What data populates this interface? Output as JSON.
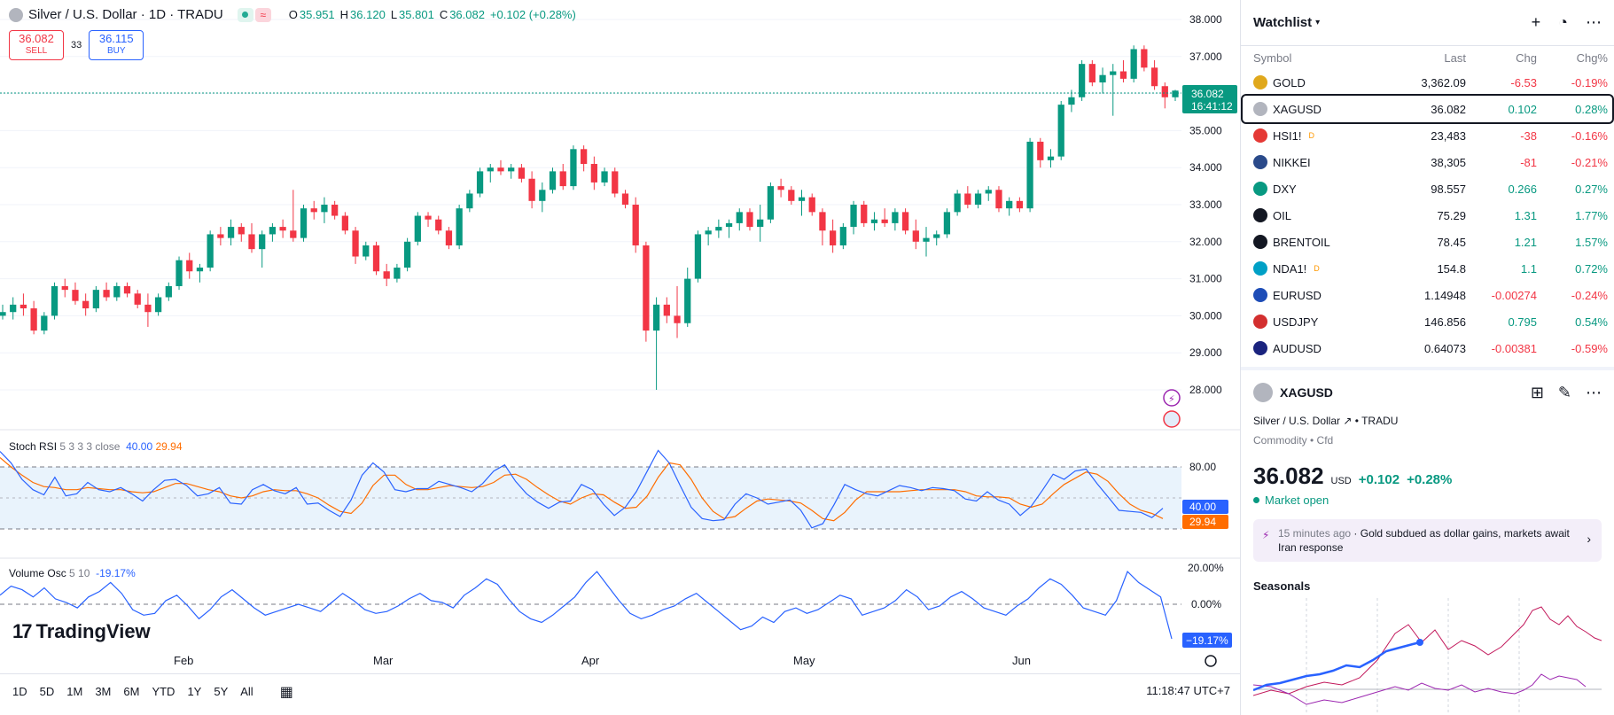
{
  "header": {
    "symbol_title": "Silver / U.S. Dollar · 1D · TRADU",
    "ohlc": [
      {
        "k": "O",
        "v": "35.951"
      },
      {
        "k": "H",
        "v": "36.120"
      },
      {
        "k": "L",
        "v": "35.801"
      },
      {
        "k": "C",
        "v": "36.082"
      }
    ],
    "change": "+0.102 (+0.28%)"
  },
  "trade": {
    "sell_price": "36.082",
    "sell_label": "SELL",
    "spread": "33",
    "buy_price": "36.115",
    "buy_label": "BUY"
  },
  "price_axis": {
    "ticks": [
      "38.000",
      "37.000",
      "36.000",
      "35.000",
      "34.000",
      "33.000",
      "32.000",
      "31.000",
      "30.000",
      "29.000",
      "28.000"
    ],
    "last_price": "36.082",
    "countdown": "16:41:12"
  },
  "stoch_rsi": {
    "name": "Stoch RSI",
    "params": "5 3 3 3 close",
    "k_value": "40.00",
    "d_value": "29.94",
    "level_high": "80.00",
    "level_low": "20.00"
  },
  "volume_osc": {
    "name": "Volume Osc",
    "params": "5 10",
    "value": "-19.17%",
    "value_tag": "−19.17%",
    "ticks": [
      "20.00%",
      "0.00%"
    ]
  },
  "time_axis": [
    "Feb",
    "Mar",
    "Apr",
    "May",
    "Jun"
  ],
  "logo": {
    "text": "TradingView"
  },
  "bottom_bar": {
    "timeframes": [
      "1D",
      "5D",
      "1M",
      "3M",
      "6M",
      "YTD",
      "1Y",
      "5Y",
      "All"
    ],
    "clock": "11:18:47 UTC+7"
  },
  "watchlist": {
    "title": "Watchlist",
    "columns": [
      "Symbol",
      "Last",
      "Chg",
      "Chg%"
    ],
    "rows": [
      {
        "symbol": "GOLD",
        "last": "3,362.09",
        "chg": "-6.53",
        "chgp": "-0.19%",
        "dir": "neg",
        "icon_color": "#e0a81c",
        "badge": ""
      },
      {
        "symbol": "XAGUSD",
        "last": "36.082",
        "chg": "0.102",
        "chgp": "0.28%",
        "dir": "pos",
        "icon_color": "#b2b5be",
        "badge": "",
        "selected": true
      },
      {
        "symbol": "HSI1!",
        "last": "23,483",
        "chg": "-38",
        "chgp": "-0.16%",
        "dir": "neg",
        "icon_color": "#e53935",
        "badge": "D"
      },
      {
        "symbol": "NIKKEI",
        "last": "38,305",
        "chg": "-81",
        "chgp": "-0.21%",
        "dir": "neg",
        "icon_color": "#2a4a8a",
        "badge": ""
      },
      {
        "symbol": "DXY",
        "last": "98.557",
        "chg": "0.266",
        "chgp": "0.27%",
        "dir": "pos",
        "icon_color": "#089981",
        "badge": ""
      },
      {
        "symbol": "OIL",
        "last": "75.29",
        "chg": "1.31",
        "chgp": "1.77%",
        "dir": "pos",
        "icon_color": "#131722",
        "badge": ""
      },
      {
        "symbol": "BRENTOIL",
        "last": "78.45",
        "chg": "1.21",
        "chgp": "1.57%",
        "dir": "pos",
        "icon_color": "#131722",
        "badge": ""
      },
      {
        "symbol": "NDA1!",
        "last": "154.8",
        "chg": "1.1",
        "chgp": "0.72%",
        "dir": "pos",
        "icon_color": "#00a0c6",
        "badge": "D"
      },
      {
        "symbol": "EURUSD",
        "last": "1.14948",
        "chg": "-0.00274",
        "chgp": "-0.24%",
        "dir": "neg",
        "icon_color": "#1e4db7",
        "badge": ""
      },
      {
        "symbol": "USDJPY",
        "last": "146.856",
        "chg": "0.795",
        "chgp": "0.54%",
        "dir": "pos",
        "icon_color": "#d32f2f",
        "badge": ""
      },
      {
        "symbol": "AUDUSD",
        "last": "0.64073",
        "chg": "-0.00381",
        "chgp": "-0.59%",
        "dir": "neg",
        "icon_color": "#1a237e",
        "badge": ""
      }
    ]
  },
  "detail": {
    "symbol": "XAGUSD",
    "name": "Silver / U.S. Dollar",
    "exchange": "TRADU",
    "type": "Commodity • Cfd",
    "price": "36.082",
    "currency": "USD",
    "change": "+0.102",
    "change_pct": "+0.28%",
    "market_status": "Market open",
    "news_time": "15 minutes ago",
    "news_headline": "Gold subdued as dollar gains, markets await Iran response",
    "seasonals_title": "Seasonals"
  },
  "colors": {
    "up": "#089981",
    "down": "#f23645",
    "blue": "#2962ff",
    "orange": "#ff6d00"
  },
  "chart_data": {
    "type": "candlestick",
    "ylim": [
      28,
      38
    ],
    "ohlc": [
      [
        30.0,
        30.3,
        29.9,
        30.1
      ],
      [
        30.1,
        30.5,
        29.9,
        30.3
      ],
      [
        30.3,
        30.6,
        30.0,
        30.2
      ],
      [
        30.2,
        30.4,
        29.5,
        29.6
      ],
      [
        29.6,
        30.1,
        29.5,
        30.0
      ],
      [
        30.0,
        30.9,
        29.9,
        30.8
      ],
      [
        30.8,
        31.0,
        30.5,
        30.7
      ],
      [
        30.7,
        30.9,
        30.3,
        30.4
      ],
      [
        30.4,
        30.6,
        30.0,
        30.2
      ],
      [
        30.2,
        30.8,
        30.1,
        30.7
      ],
      [
        30.7,
        30.9,
        30.4,
        30.5
      ],
      [
        30.5,
        30.9,
        30.4,
        30.8
      ],
      [
        30.8,
        30.9,
        30.5,
        30.6
      ],
      [
        30.6,
        30.7,
        30.2,
        30.3
      ],
      [
        30.3,
        30.6,
        29.7,
        30.1
      ],
      [
        30.1,
        30.6,
        30.0,
        30.5
      ],
      [
        30.5,
        30.9,
        30.4,
        30.8
      ],
      [
        30.8,
        31.6,
        30.7,
        31.5
      ],
      [
        31.5,
        31.7,
        31.0,
        31.2
      ],
      [
        31.2,
        31.4,
        30.9,
        31.3
      ],
      [
        31.3,
        32.3,
        31.2,
        32.2
      ],
      [
        32.2,
        32.4,
        31.9,
        32.1
      ],
      [
        32.1,
        32.6,
        31.9,
        32.4
      ],
      [
        32.4,
        32.5,
        32.0,
        32.2
      ],
      [
        32.2,
        32.5,
        31.7,
        31.8
      ],
      [
        31.8,
        32.3,
        31.3,
        32.2
      ],
      [
        32.2,
        32.5,
        32.0,
        32.4
      ],
      [
        32.4,
        32.6,
        32.1,
        32.3
      ],
      [
        32.3,
        33.4,
        32.0,
        32.1
      ],
      [
        32.1,
        33.0,
        32.0,
        32.9
      ],
      [
        32.9,
        33.1,
        32.6,
        32.8
      ],
      [
        32.8,
        33.2,
        32.5,
        33.0
      ],
      [
        33.0,
        33.1,
        32.6,
        32.7
      ],
      [
        32.7,
        32.8,
        32.2,
        32.3
      ],
      [
        32.3,
        32.4,
        31.4,
        31.6
      ],
      [
        31.6,
        32.0,
        31.5,
        31.9
      ],
      [
        31.9,
        32.0,
        31.1,
        31.2
      ],
      [
        31.2,
        31.4,
        30.8,
        31.0
      ],
      [
        31.0,
        31.4,
        30.9,
        31.3
      ],
      [
        31.3,
        32.1,
        31.2,
        32.0
      ],
      [
        32.0,
        32.8,
        31.9,
        32.7
      ],
      [
        32.7,
        32.8,
        32.4,
        32.6
      ],
      [
        32.6,
        32.7,
        32.2,
        32.3
      ],
      [
        32.3,
        32.4,
        31.8,
        31.9
      ],
      [
        31.9,
        33.0,
        31.8,
        32.9
      ],
      [
        32.9,
        33.4,
        32.8,
        33.3
      ],
      [
        33.3,
        34.0,
        33.2,
        33.9
      ],
      [
        33.9,
        34.1,
        33.6,
        34.0
      ],
      [
        34.0,
        34.2,
        33.8,
        33.9
      ],
      [
        33.9,
        34.1,
        33.7,
        34.0
      ],
      [
        34.0,
        34.1,
        33.6,
        33.7
      ],
      [
        33.7,
        33.9,
        32.9,
        33.1
      ],
      [
        33.1,
        33.6,
        32.8,
        33.4
      ],
      [
        33.4,
        34.0,
        33.3,
        33.9
      ],
      [
        33.9,
        34.1,
        33.4,
        33.5
      ],
      [
        33.5,
        34.6,
        33.4,
        34.5
      ],
      [
        34.5,
        34.6,
        33.9,
        34.1
      ],
      [
        34.1,
        34.3,
        33.4,
        33.6
      ],
      [
        33.6,
        34.0,
        33.5,
        33.9
      ],
      [
        33.9,
        34.0,
        33.2,
        33.3
      ],
      [
        33.3,
        33.4,
        32.9,
        33.0
      ],
      [
        33.0,
        33.2,
        31.7,
        31.9
      ],
      [
        31.9,
        32.0,
        29.3,
        29.6
      ],
      [
        29.6,
        30.5,
        28.0,
        30.3
      ],
      [
        30.3,
        30.5,
        29.8,
        30.0
      ],
      [
        30.0,
        30.8,
        29.4,
        29.8
      ],
      [
        29.8,
        31.3,
        29.7,
        31.0
      ],
      [
        31.0,
        32.3,
        30.9,
        32.2
      ],
      [
        32.2,
        32.4,
        31.9,
        32.3
      ],
      [
        32.3,
        32.6,
        32.1,
        32.4
      ],
      [
        32.4,
        32.6,
        32.1,
        32.5
      ],
      [
        32.5,
        32.9,
        32.3,
        32.8
      ],
      [
        32.8,
        32.9,
        32.3,
        32.4
      ],
      [
        32.4,
        33.0,
        32.0,
        32.6
      ],
      [
        32.6,
        33.6,
        32.5,
        33.5
      ],
      [
        33.5,
        33.7,
        33.2,
        33.4
      ],
      [
        33.4,
        33.5,
        33.0,
        33.1
      ],
      [
        33.1,
        33.4,
        32.7,
        33.2
      ],
      [
        33.2,
        33.3,
        32.7,
        32.8
      ],
      [
        32.8,
        32.9,
        31.9,
        32.3
      ],
      [
        32.3,
        32.6,
        31.7,
        31.9
      ],
      [
        31.9,
        32.5,
        31.8,
        32.4
      ],
      [
        32.4,
        33.1,
        32.2,
        33.0
      ],
      [
        33.0,
        33.1,
        32.4,
        32.5
      ],
      [
        32.5,
        32.8,
        32.3,
        32.6
      ],
      [
        32.6,
        32.9,
        32.4,
        32.5
      ],
      [
        32.5,
        32.9,
        32.3,
        32.8
      ],
      [
        32.8,
        32.9,
        32.2,
        32.3
      ],
      [
        32.3,
        32.6,
        31.8,
        32.0
      ],
      [
        32.0,
        32.4,
        31.6,
        32.1
      ],
      [
        32.1,
        32.3,
        31.9,
        32.2
      ],
      [
        32.2,
        32.9,
        32.1,
        32.8
      ],
      [
        32.8,
        33.4,
        32.7,
        33.3
      ],
      [
        33.3,
        33.5,
        32.9,
        33.0
      ],
      [
        33.0,
        33.4,
        32.9,
        33.3
      ],
      [
        33.3,
        33.5,
        33.1,
        33.4
      ],
      [
        33.4,
        33.5,
        32.8,
        32.9
      ],
      [
        32.9,
        33.2,
        32.7,
        33.1
      ],
      [
        33.1,
        33.2,
        32.8,
        32.9
      ],
      [
        32.9,
        34.8,
        32.8,
        34.7
      ],
      [
        34.7,
        34.8,
        34.0,
        34.2
      ],
      [
        34.2,
        34.5,
        34.0,
        34.3
      ],
      [
        34.3,
        35.8,
        34.2,
        35.7
      ],
      [
        35.7,
        36.1,
        35.5,
        35.9
      ],
      [
        35.9,
        36.9,
        35.8,
        36.8
      ],
      [
        36.8,
        36.9,
        36.2,
        36.3
      ],
      [
        36.3,
        36.7,
        36.0,
        36.5
      ],
      [
        36.5,
        36.8,
        35.4,
        36.6
      ],
      [
        36.6,
        36.9,
        36.3,
        36.4
      ],
      [
        36.4,
        37.3,
        36.3,
        37.2
      ],
      [
        37.2,
        37.3,
        36.6,
        36.7
      ],
      [
        36.7,
        36.9,
        36.1,
        36.2
      ],
      [
        36.2,
        36.3,
        35.6,
        35.9
      ],
      [
        35.9,
        36.1,
        35.8,
        36.08
      ]
    ],
    "stoch_k": [
      95,
      84,
      68,
      58,
      53,
      70,
      52,
      54,
      65,
      58,
      56,
      60,
      54,
      47,
      58,
      67,
      68,
      62,
      52,
      54,
      60,
      45,
      44,
      58,
      63,
      57,
      54,
      60,
      44,
      45,
      38,
      32,
      48,
      72,
      84,
      75,
      58,
      56,
      59,
      59,
      66,
      63,
      60,
      56,
      64,
      76,
      82,
      66,
      54,
      46,
      40,
      46,
      47,
      63,
      58,
      44,
      33,
      41,
      56,
      76,
      96,
      84,
      62,
      41,
      30,
      28,
      29,
      44,
      54,
      50,
      44,
      46,
      48,
      38,
      21,
      25,
      43,
      63,
      58,
      54,
      52,
      57,
      62,
      60,
      57,
      60,
      59,
      57,
      49,
      47,
      56,
      48,
      44,
      33,
      42,
      57,
      73,
      68,
      76,
      78,
      64,
      51,
      38,
      37,
      36,
      31,
      40
    ],
    "stoch_d": [
      89,
      80,
      72,
      65,
      61,
      60,
      58,
      58,
      60,
      59,
      58,
      58,
      56,
      55,
      56,
      60,
      64,
      64,
      61,
      58,
      56,
      52,
      50,
      52,
      56,
      58,
      57,
      57,
      54,
      50,
      43,
      37,
      35,
      45,
      62,
      72,
      72,
      63,
      58,
      58,
      60,
      62,
      61,
      60,
      61,
      65,
      72,
      73,
      68,
      60,
      53,
      47,
      44,
      50,
      54,
      53,
      46,
      40,
      41,
      52,
      70,
      84,
      82,
      68,
      50,
      37,
      30,
      32,
      40,
      47,
      49,
      48,
      47,
      45,
      38,
      30,
      28,
      36,
      48,
      56,
      56,
      56,
      56,
      57,
      58,
      58,
      58,
      58,
      56,
      52,
      51,
      51,
      50,
      44,
      41,
      44,
      54,
      63,
      69,
      75,
      73,
      66,
      54,
      44,
      38,
      35,
      30
    ],
    "volume_osc": [
      5,
      10,
      8,
      4,
      9,
      3,
      1,
      -2,
      4,
      7,
      12,
      6,
      -3,
      -6,
      -5,
      2,
      5,
      -1,
      -8,
      -3,
      4,
      8,
      3,
      -2,
      -6,
      -4,
      -2,
      0,
      -2,
      -4,
      1,
      6,
      2,
      -3,
      -5,
      -4,
      -1,
      3,
      6,
      2,
      1,
      -2,
      5,
      9,
      14,
      11,
      3,
      -4,
      -8,
      -10,
      -6,
      -1,
      4,
      12,
      18,
      10,
      2,
      -5,
      -8,
      -6,
      -3,
      -1,
      3,
      6,
      1,
      -4,
      -9,
      -14,
      -12,
      -7,
      -10,
      -4,
      -2,
      -5,
      -3,
      1,
      5,
      3,
      -6,
      -4,
      -2,
      2,
      8,
      4,
      -3,
      -1,
      4,
      7,
      3,
      -2,
      -4,
      -6,
      -1,
      3,
      9,
      14,
      11,
      5,
      -2,
      -4,
      -6,
      2,
      18,
      12,
      8,
      4,
      -19
    ]
  }
}
